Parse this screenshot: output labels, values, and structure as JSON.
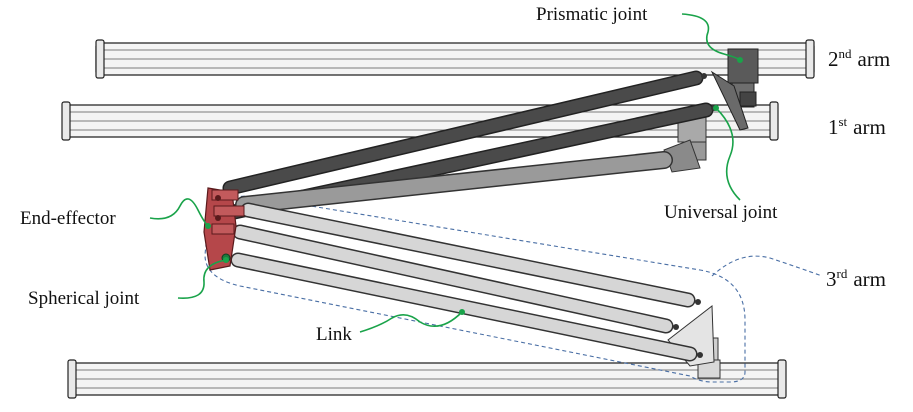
{
  "labels": {
    "prismatic_joint": "Prismatic joint",
    "universal_joint": "Universal joint",
    "end_effector": "End-effector",
    "spherical_joint": "Spherical joint",
    "link": "Link"
  },
  "arms": {
    "second": {
      "base": "2",
      "sup": "nd",
      "word": "arm"
    },
    "first": {
      "base": "1",
      "sup": "st",
      "word": "arm"
    },
    "third": {
      "base": "3",
      "sup": "rd",
      "word": "arm"
    }
  },
  "colors": {
    "dark_link": "#4a4a4a",
    "mid_link": "#9a9a9a",
    "light_link": "#d6d6d6",
    "end_effector": "#b5474a",
    "leader": "#1aa34a",
    "region_outline": "#4a6fa5"
  }
}
